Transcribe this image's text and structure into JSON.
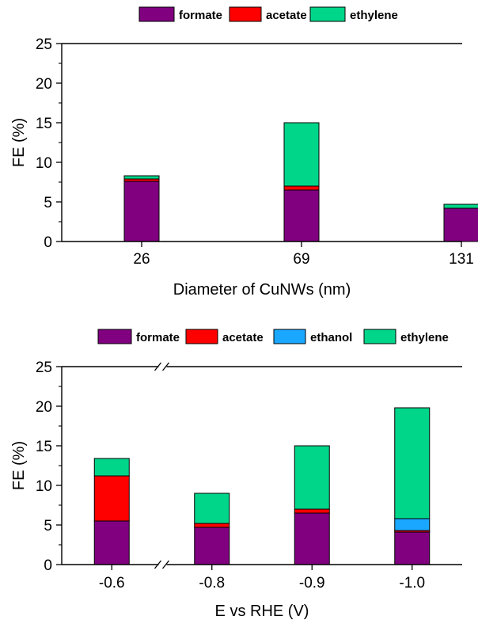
{
  "chart_data": [
    {
      "type": "bar",
      "stacked": true,
      "categories": [
        "26",
        "69",
        "131"
      ],
      "series": [
        {
          "name": "formate",
          "color": "#800080",
          "values": [
            7.6,
            6.5,
            4.2
          ]
        },
        {
          "name": "acetate",
          "color": "#ff0000",
          "values": [
            0.3,
            0.5,
            0.0
          ]
        },
        {
          "name": "ethylene",
          "color": "#00d68a",
          "values": [
            0.4,
            8.0,
            0.5
          ]
        }
      ],
      "legend": [
        "formate",
        "acetate",
        "ethylene"
      ],
      "legend_position": "top-center",
      "xlabel": "Diameter of CuNWs (nm)",
      "ylabel": "FE (%)",
      "ylim": [
        0,
        25
      ],
      "yticks": [
        "0",
        "5",
        "10",
        "15",
        "20",
        "25"
      ],
      "grid": false
    },
    {
      "type": "bar",
      "stacked": true,
      "axis_break": true,
      "categories": [
        "-0.6",
        "-0.8",
        "-0.9",
        "-1.0"
      ],
      "series": [
        {
          "name": "formate",
          "color": "#800080",
          "values": [
            5.5,
            4.7,
            6.5,
            4.1
          ]
        },
        {
          "name": "acetate",
          "color": "#ff0000",
          "values": [
            5.7,
            0.5,
            0.5,
            0.2
          ]
        },
        {
          "name": "ethanol",
          "color": "#1aa7ff",
          "values": [
            0.0,
            0.0,
            0.0,
            1.5
          ]
        },
        {
          "name": "ethylene",
          "color": "#00d68a",
          "values": [
            2.2,
            3.8,
            8.0,
            14.0
          ]
        }
      ],
      "legend": [
        "formate",
        "acetate",
        "ethanol",
        "ethylene"
      ],
      "legend_position": "top-center",
      "xlabel": "E vs RHE (V)",
      "ylabel": "FE (%)",
      "ylim": [
        0,
        25
      ],
      "yticks": [
        "0",
        "5",
        "10",
        "15",
        "20",
        "25"
      ],
      "grid": false
    }
  ]
}
